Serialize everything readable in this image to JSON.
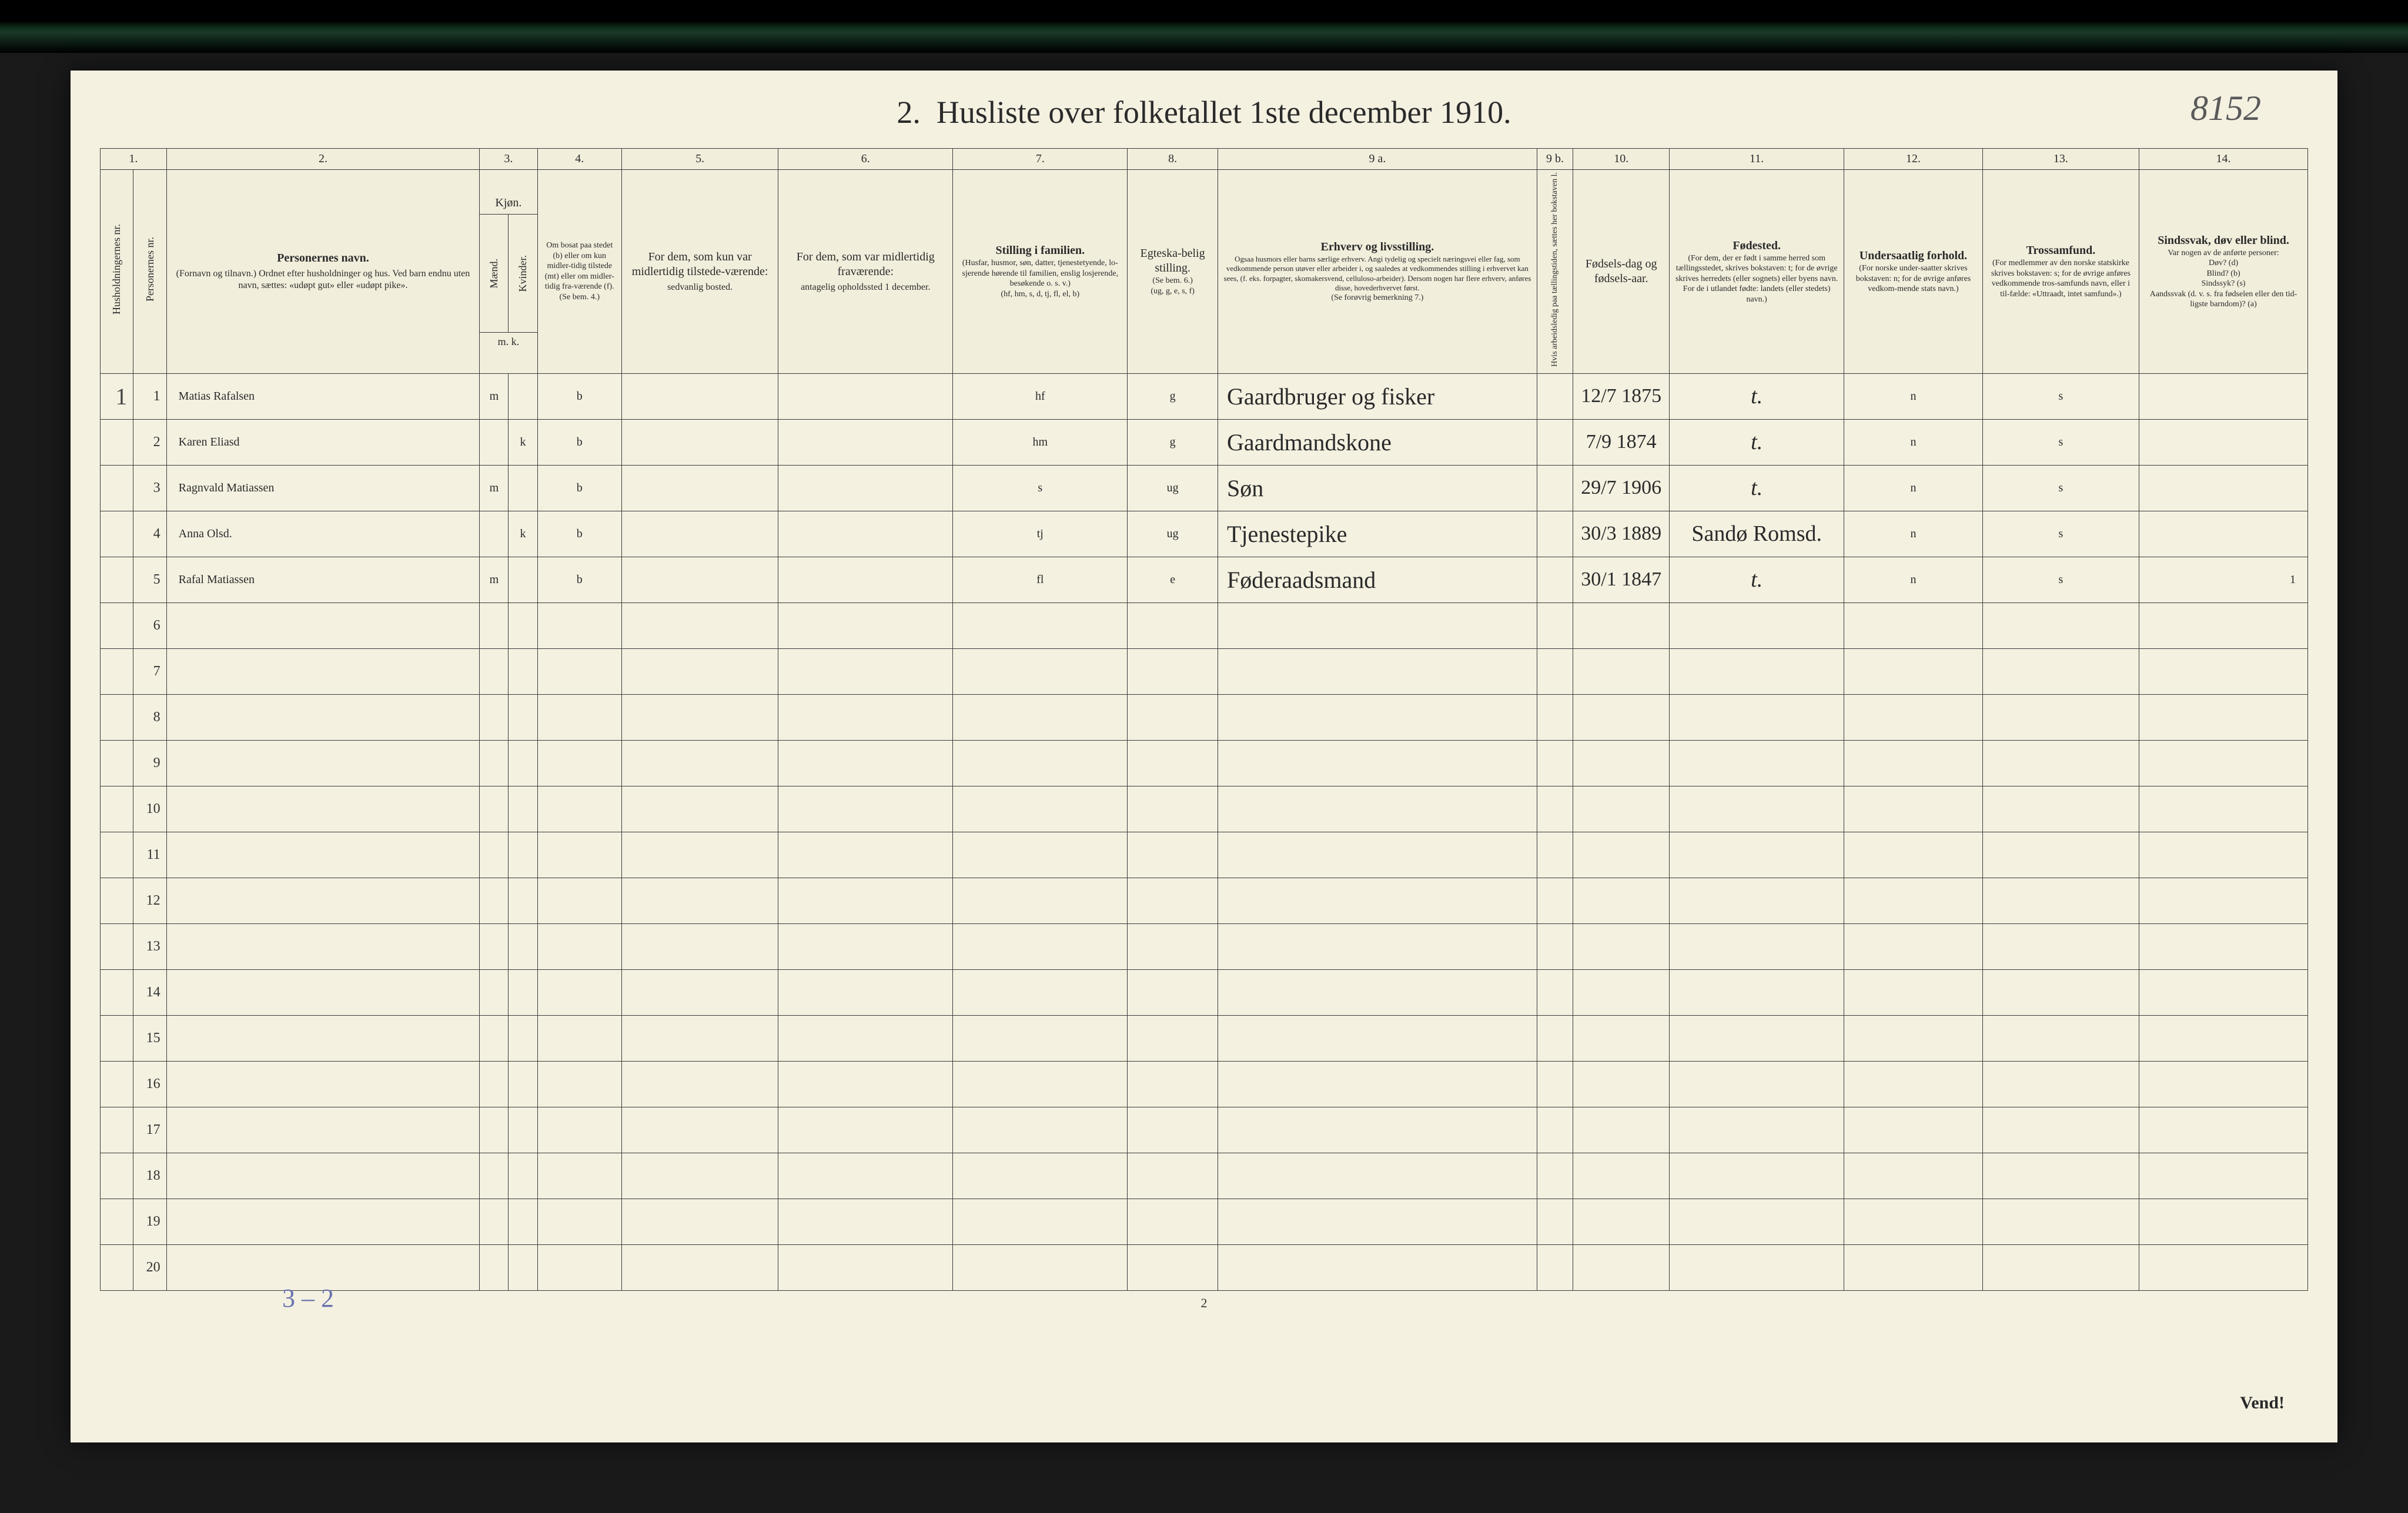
{
  "title_prefix": "2.",
  "title": "Husliste over folketallet 1ste december 1910.",
  "corner_number": "8152",
  "footer_page": "2",
  "vend": "Vend!",
  "column_numbers": [
    "1.",
    "2.",
    "3.",
    "4.",
    "5.",
    "6.",
    "7.",
    "8.",
    "9 a.",
    "9 b.",
    "10.",
    "11.",
    "12.",
    "13.",
    "14."
  ],
  "headers": {
    "c1a": "Husholdningernes nr.",
    "c1b": "Personernes nr.",
    "c2": "Personernes navn.",
    "c2_sub": "(Fornavn og tilnavn.)\nOrdnet efter husholdninger og hus.\nVed barn endnu uten navn, sættes: «udøpt gut» eller «udøpt pike».",
    "c3": "Kjøn.",
    "c3a": "Mænd.",
    "c3b": "Kvinder.",
    "c3_foot": "m.  k.",
    "c4": "Om bosat paa stedet (b) eller om kun midler-tidig tilstede (mt) eller om midler-tidig fra-værende (f).",
    "c4_foot": "(Se bem. 4.)",
    "c5": "For dem, som kun var midlertidig tilstede-værende:",
    "c5_sub": "sedvanlig bosted.",
    "c6": "For dem, som var midlertidig fraværende:",
    "c6_sub": "antagelig opholdssted 1 december.",
    "c7": "Stilling i familien.",
    "c7_sub": "(Husfar, husmor, søn, datter, tjenestetyende, lo-sjerende hørende til familien, enslig losjerende, besøkende o. s. v.)",
    "c7_foot": "(hf, hm, s, d, tj, fl, el, b)",
    "c8": "Egteska-belig stilling.",
    "c8_sub": "(Se bem. 6.)",
    "c8_foot": "(ug, g, e, s, f)",
    "c9": "Erhverv og livsstilling.",
    "c9_sub": "Ogsaa husmors eller barns særlige erhverv. Angi tydelig og specielt næringsvei eller fag, som vedkommende person utøver eller arbeider i, og saaledes at vedkommendes stilling i erhvervet kan sees, (f. eks. forpagter, skomakersvend, celluloso-arbeider). Dersom nogen har flere erhverv, anføres disse, hovederhvervet først.",
    "c9_foot": "(Se forøvrig bemerkning 7.)",
    "c9b": "Hvis arbeidsledig paa tællingstiden, sættes her bokstaven l.",
    "c10": "Fødsels-dag og fødsels-aar.",
    "c11": "Fødested.",
    "c11_sub": "(For dem, der er født i samme herred som tællingsstedet, skrives bokstaven: t; for de øvrige skrives herredets (eller sognets) eller byens navn. For de i utlandet fødte: landets (eller stedets) navn.)",
    "c12": "Undersaatlig forhold.",
    "c12_sub": "(For norske under-saatter skrives bokstaven: n; for de øvrige anføres vedkom-mende stats navn.)",
    "c13": "Trossamfund.",
    "c13_sub": "(For medlemmer av den norske statskirke skrives bokstaven: s; for de øvrige anføres vedkommende tros-samfunds navn, eller i til-fælde: «Uttraadt, intet samfund».)",
    "c14": "Sindssvak, døv eller blind.",
    "c14_sub": "Var nogen av de anførte personer:\nDøv? (d)\nBlind? (b)\nSindssyk? (s)\nAandssvak (d. v. s. fra fødselen eller den tid-ligste barndom)? (a)"
  },
  "household_mark": "1",
  "rows": [
    {
      "n": "1",
      "name": "Matias Rafalsen",
      "sex_m": "m",
      "sex_k": "",
      "res": "b",
      "fam": "hf",
      "mar": "g",
      "occ": "Gaardbruger og fisker",
      "dob": "12/7 1875",
      "place": "t.",
      "nat": "n",
      "rel": "s"
    },
    {
      "n": "2",
      "name": "Karen Eliasd",
      "sex_m": "",
      "sex_k": "k",
      "res": "b",
      "fam": "hm",
      "mar": "g",
      "occ": "Gaardmandskone",
      "dob": "7/9 1874",
      "place": "t.",
      "nat": "n",
      "rel": "s"
    },
    {
      "n": "3",
      "name": "Ragnvald Matiassen",
      "sex_m": "m",
      "sex_k": "",
      "res": "b",
      "fam": "s",
      "mar": "ug",
      "occ": "Søn",
      "dob": "29/7 1906",
      "place": "t.",
      "nat": "n",
      "rel": "s"
    },
    {
      "n": "4",
      "name": "Anna Olsd.",
      "sex_m": "",
      "sex_k": "k",
      "res": "b",
      "fam": "tj",
      "mar": "ug",
      "occ": "Tjenestepike",
      "dob": "30/3 1889",
      "place": "Sandø Romsd.",
      "nat": "n",
      "rel": "s"
    },
    {
      "n": "5",
      "name": "Rafal Matiassen",
      "sex_m": "m",
      "sex_k": "",
      "res": "b",
      "fam": "fl",
      "mar": "e",
      "occ": "Føderaadsmand",
      "dob": "30/1 1847",
      "place": "t.",
      "nat": "n",
      "rel": "s"
    }
  ],
  "empty_rows": [
    "6",
    "7",
    "8",
    "9",
    "10",
    "11",
    "12",
    "13",
    "14",
    "15",
    "16",
    "17",
    "18",
    "19",
    "20"
  ],
  "tally": "3 – 2",
  "place_red_indices": [
    0,
    1,
    2,
    4
  ],
  "row5_extra": "1"
}
